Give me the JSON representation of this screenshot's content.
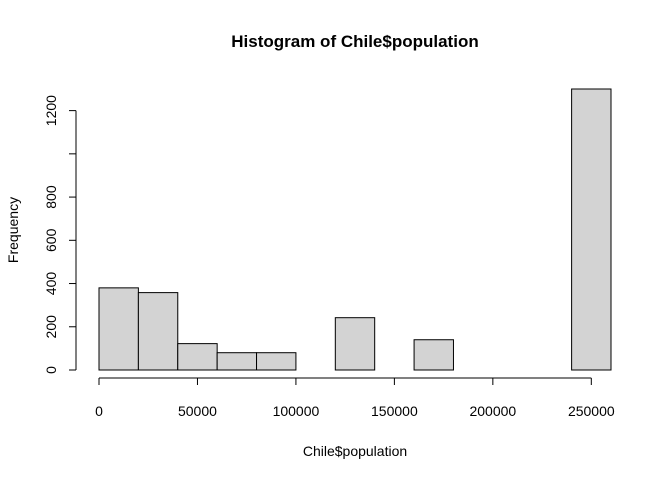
{
  "chart_data": {
    "type": "bar",
    "subtype": "histogram",
    "title": "Histogram of Chile$population",
    "xlabel": "Chile$population",
    "ylabel": "Frequency",
    "bins": [
      {
        "start": 0,
        "end": 20000,
        "count": 380
      },
      {
        "start": 20000,
        "end": 40000,
        "count": 358
      },
      {
        "start": 40000,
        "end": 60000,
        "count": 122
      },
      {
        "start": 60000,
        "end": 80000,
        "count": 80
      },
      {
        "start": 80000,
        "end": 100000,
        "count": 80
      },
      {
        "start": 100000,
        "end": 120000,
        "count": 0
      },
      {
        "start": 120000,
        "end": 140000,
        "count": 242
      },
      {
        "start": 140000,
        "end": 160000,
        "count": 0
      },
      {
        "start": 160000,
        "end": 180000,
        "count": 140
      },
      {
        "start": 180000,
        "end": 200000,
        "count": 0
      },
      {
        "start": 200000,
        "end": 220000,
        "count": 0
      },
      {
        "start": 220000,
        "end": 240000,
        "count": 0
      },
      {
        "start": 240000,
        "end": 260000,
        "count": 1300
      }
    ],
    "xlim": [
      0,
      260000
    ],
    "ylim": [
      0,
      1300
    ],
    "x_ticks": [
      0,
      50000,
      100000,
      150000,
      200000,
      250000
    ],
    "x_tick_labels": [
      "0",
      "50000",
      "100000",
      "150000",
      "200000",
      "250000"
    ],
    "y_ticks": [
      0,
      200,
      400,
      600,
      800,
      1000,
      1200
    ],
    "y_tick_labels": [
      "0",
      "200",
      "400",
      "600",
      "800",
      "",
      "1200"
    ],
    "grid": false,
    "colors": {
      "bar_fill": "#d3d3d3",
      "bar_stroke": "#000000"
    }
  }
}
